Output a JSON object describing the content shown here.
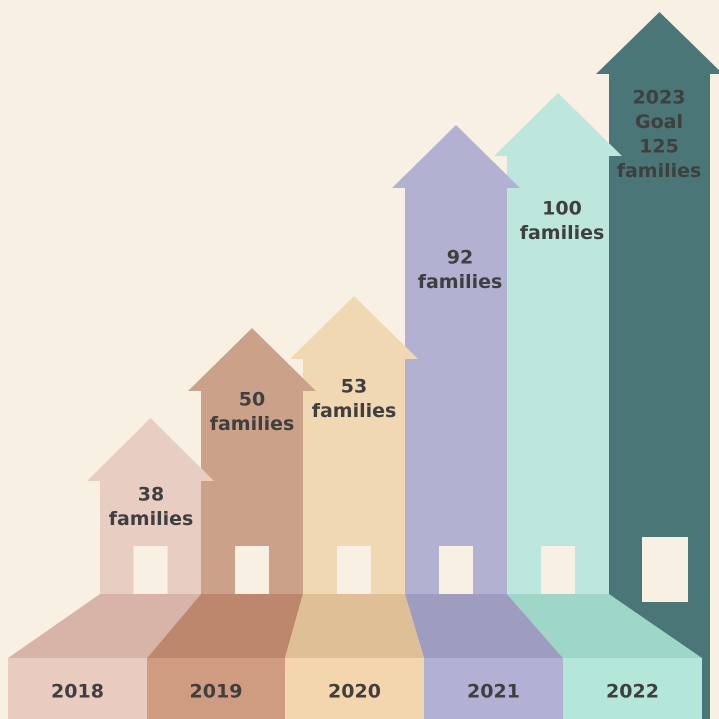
{
  "houses": [
    {
      "lines": [
        "38",
        "families"
      ],
      "year": "2018"
    },
    {
      "lines": [
        "50",
        "families"
      ],
      "year": "2019"
    },
    {
      "lines": [
        "53",
        "families"
      ],
      "year": "2020"
    },
    {
      "lines": [
        "92",
        "families"
      ],
      "year": "2021"
    },
    {
      "lines": [
        "100",
        "families"
      ],
      "year": "2022"
    },
    {
      "lines": [
        "2023",
        "Goal",
        "125",
        "families"
      ]
    }
  ]
}
